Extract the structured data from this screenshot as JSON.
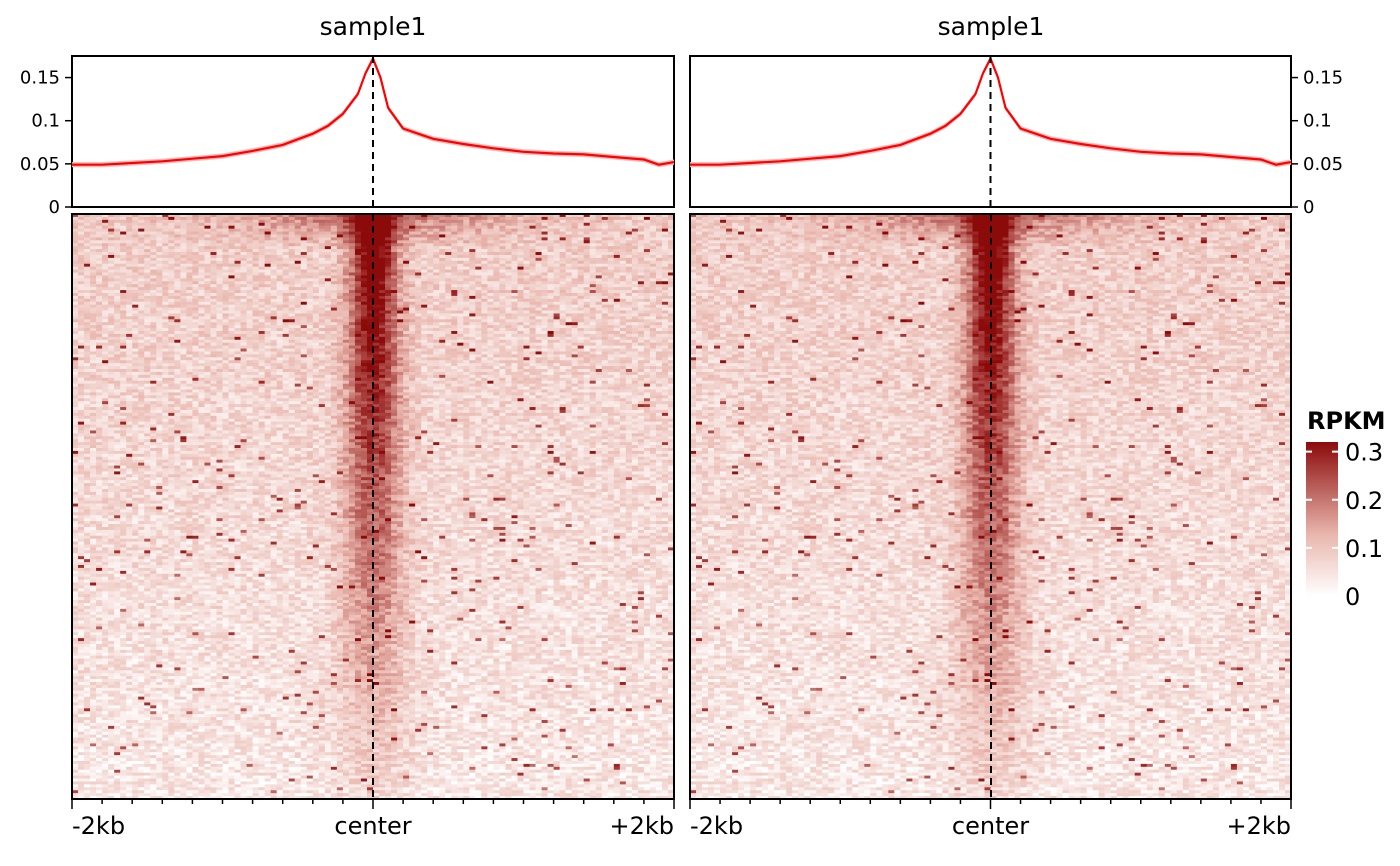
{
  "chart_data": {
    "type": "heatmap",
    "title": "",
    "panels": [
      {
        "title": "sample1",
        "profile": {
          "type": "line",
          "ylim": [
            0,
            0.175
          ],
          "yticks": [
            "0",
            "0.05",
            "0.1",
            "0.15"
          ],
          "x_positions": [
            -2000,
            -1800,
            -1600,
            -1400,
            -1200,
            -1000,
            -800,
            -600,
            -400,
            -300,
            -200,
            -100,
            -50,
            0,
            50,
            100,
            200,
            300,
            400,
            600,
            800,
            1000,
            1200,
            1400,
            1600,
            1800,
            1900,
            2000
          ],
          "values": [
            0.049,
            0.049,
            0.051,
            0.053,
            0.056,
            0.059,
            0.065,
            0.072,
            0.085,
            0.094,
            0.108,
            0.131,
            0.155,
            0.172,
            0.15,
            0.115,
            0.091,
            0.085,
            0.079,
            0.073,
            0.068,
            0.064,
            0.062,
            0.061,
            0.058,
            0.055,
            0.049,
            0.052
          ],
          "line_color": "#ff0000",
          "band_color": "#f4b6b6"
        },
        "center_label": "center",
        "xtick_labels": [
          "-2kb",
          "center",
          "+2kb"
        ]
      },
      {
        "title": "sample1",
        "profile": {
          "type": "line",
          "ylim": [
            0,
            0.175
          ],
          "yticks": [
            "0",
            "0.05",
            "0.1",
            "0.15"
          ],
          "x_positions": [
            -2000,
            -1800,
            -1600,
            -1400,
            -1200,
            -1000,
            -800,
            -600,
            -400,
            -300,
            -200,
            -100,
            -50,
            0,
            50,
            100,
            200,
            300,
            400,
            600,
            800,
            1000,
            1200,
            1400,
            1600,
            1800,
            1900,
            2000
          ],
          "values": [
            0.049,
            0.049,
            0.051,
            0.053,
            0.056,
            0.059,
            0.065,
            0.072,
            0.085,
            0.094,
            0.108,
            0.131,
            0.155,
            0.172,
            0.15,
            0.115,
            0.091,
            0.085,
            0.079,
            0.073,
            0.068,
            0.064,
            0.062,
            0.061,
            0.058,
            0.055,
            0.049,
            0.052
          ],
          "line_color": "#ff0000",
          "band_color": "#f4b6b6"
        },
        "center_label": "center",
        "xtick_labels": [
          "-2kb",
          "center",
          "+2kb"
        ]
      }
    ],
    "heatmap": {
      "x_range": [
        -2000,
        2000
      ],
      "rows": 200,
      "bins": 100,
      "sorted": "descending by signal",
      "colorscale": [
        "#ffffff",
        "#8b0a0a"
      ],
      "note_values": "approximate pattern: strong signal at center, decaying towards edges and lower rows"
    },
    "legend": {
      "title": "RPKM",
      "ticks": [
        "0",
        "0.1",
        "0.2",
        "0.3"
      ],
      "range": [
        0,
        0.32
      ],
      "colors": [
        "#ffffff",
        "#8b0a0a"
      ],
      "position": "right"
    }
  }
}
